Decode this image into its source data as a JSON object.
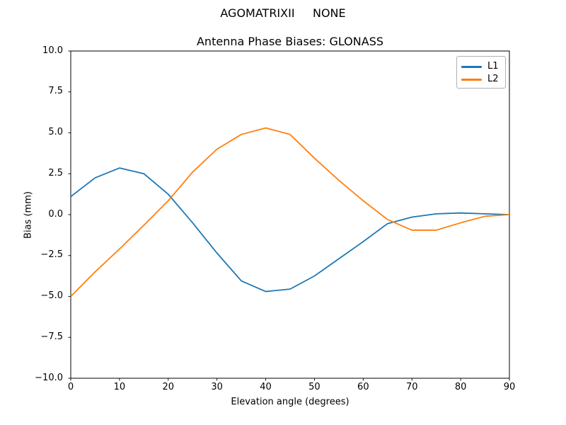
{
  "figure": {
    "suptitle": "AGOMATRIXII     NONE"
  },
  "chart_data": {
    "type": "line",
    "title": "Antenna Phase Biases: GLONASS",
    "xlabel": "Elevation angle (degrees)",
    "ylabel": "Bias (mm)",
    "xlim": [
      0,
      90
    ],
    "ylim": [
      -10,
      10
    ],
    "grid": false,
    "legend_position": "upper right",
    "xticks": [
      0,
      10,
      20,
      30,
      40,
      50,
      60,
      70,
      80,
      90
    ],
    "yticks": [
      10.0,
      7.5,
      5.0,
      2.5,
      0.0,
      -2.5,
      -5.0,
      -7.5,
      -10.0
    ],
    "yticklabels": [
      "10.0",
      "7.5",
      "5.0",
      "2.5",
      "0.0",
      "−2.5",
      "−5.0",
      "−7.5",
      "−10.0"
    ],
    "x": [
      0,
      5,
      10,
      15,
      20,
      25,
      30,
      35,
      40,
      45,
      50,
      55,
      60,
      65,
      70,
      75,
      80,
      85,
      90
    ],
    "series": [
      {
        "name": "L1",
        "color": "#1f77b4",
        "values": [
          1.1,
          2.25,
          2.85,
          2.5,
          1.25,
          -0.5,
          -2.35,
          -4.05,
          -4.7,
          -4.55,
          -3.75,
          -2.7,
          -1.65,
          -0.55,
          -0.15,
          0.05,
          0.1,
          0.05,
          0.0
        ]
      },
      {
        "name": "L2",
        "color": "#ff7f0e",
        "values": [
          -5.0,
          -3.5,
          -2.1,
          -0.65,
          0.85,
          2.6,
          4.0,
          4.9,
          5.3,
          4.9,
          3.45,
          2.1,
          0.85,
          -0.3,
          -0.95,
          -0.95,
          -0.5,
          -0.1,
          0.0
        ]
      }
    ],
    "spine_color": "#000000",
    "background": "#ffffff"
  }
}
